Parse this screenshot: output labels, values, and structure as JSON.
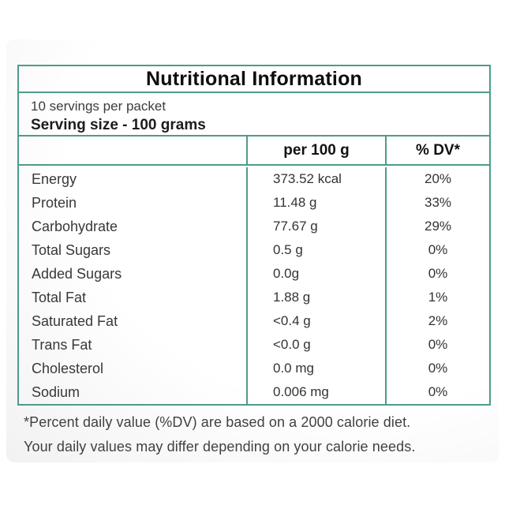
{
  "title": "Nutritional Information",
  "serving_info": {
    "servings_per_packet": "10 servings per packet",
    "serving_size": "Serving size - 100 grams"
  },
  "table": {
    "columns": {
      "amount": "per 100 g",
      "dv": "% DV*"
    },
    "rows": [
      {
        "label": "Energy",
        "amount": "373.52 kcal",
        "dv": "20%"
      },
      {
        "label": "Protein",
        "amount": "11.48 g",
        "dv": "33%"
      },
      {
        "label": "Carbohydrate",
        "amount": "77.67 g",
        "dv": "29%"
      },
      {
        "label": "Total Sugars",
        "amount": "0.5 g",
        "dv": "0%"
      },
      {
        "label": "Added Sugars",
        "amount": "0.0g",
        "dv": "0%"
      },
      {
        "label": "Total Fat",
        "amount": "1.88 g",
        "dv": "1%"
      },
      {
        "label": "Saturated Fat",
        "amount": "<0.4 g",
        "dv": "2%"
      },
      {
        "label": "Trans Fat",
        "amount": "<0.0 g",
        "dv": "0%"
      },
      {
        "label": "Cholesterol",
        "amount": "0.0 mg",
        "dv": "0%"
      },
      {
        "label": "Sodium",
        "amount": "0.006 mg",
        "dv": "0%"
      }
    ]
  },
  "footnote": {
    "line1": "*Percent daily value (%DV) are based on a 2000 calorie diet.",
    "line2": "Your daily values may differ depending on your calorie needs."
  },
  "colors": {
    "table_border": "#4f9b8b",
    "title_text": "#0d0d0d",
    "body_text": "#383838",
    "card_background_edge": "#d6d6d6"
  }
}
